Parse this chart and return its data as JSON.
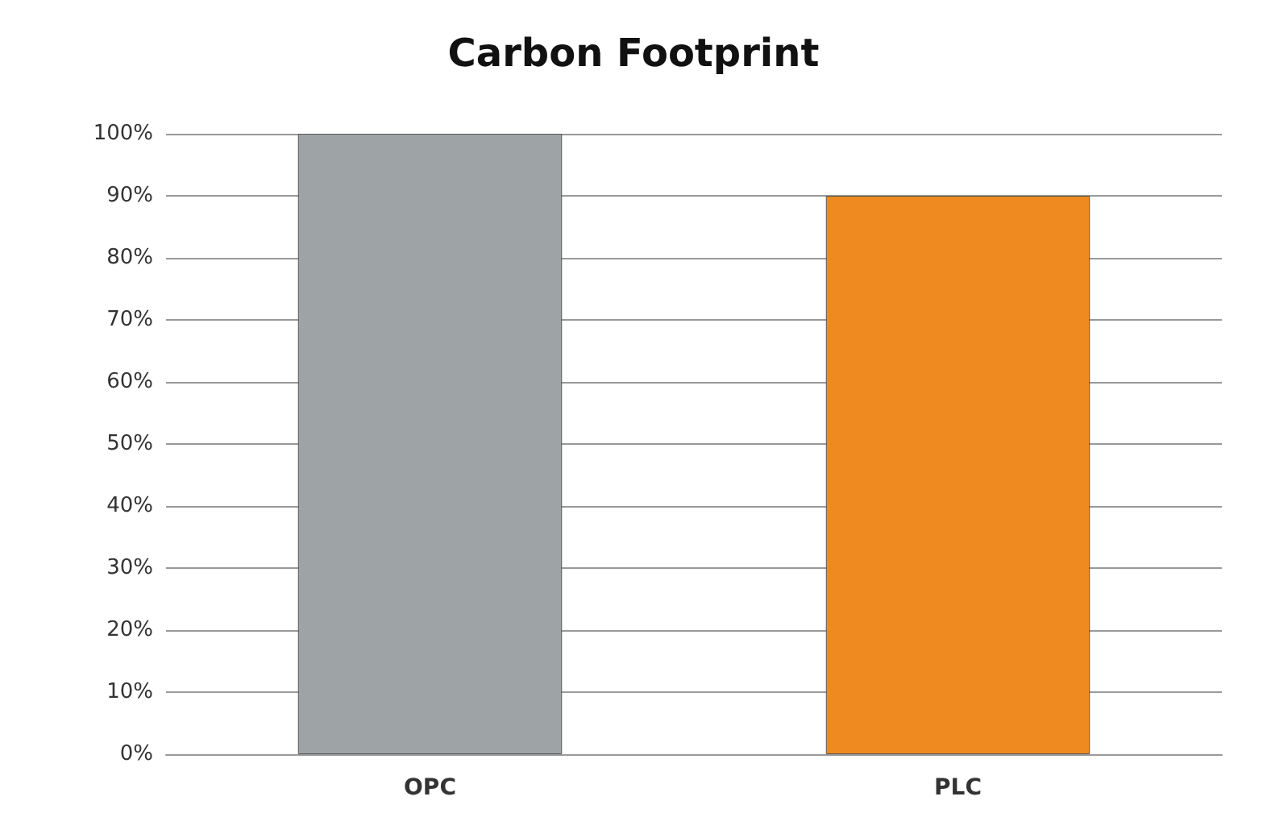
{
  "chart_data": {
    "type": "bar",
    "title": "Carbon Footprint",
    "categories": [
      "OPC",
      "PLC"
    ],
    "values": [
      100,
      90
    ],
    "colors": [
      "#9ea3a6",
      "#ee8a1f"
    ],
    "ylim": [
      0,
      100
    ],
    "yticks": [
      {
        "value": 0,
        "label": "0%"
      },
      {
        "value": 10,
        "label": "10%"
      },
      {
        "value": 20,
        "label": "20%"
      },
      {
        "value": 30,
        "label": "30%"
      },
      {
        "value": 40,
        "label": "40%"
      },
      {
        "value": 50,
        "label": "50%"
      },
      {
        "value": 60,
        "label": "60%"
      },
      {
        "value": 70,
        "label": "70%"
      },
      {
        "value": 80,
        "label": "80%"
      },
      {
        "value": 90,
        "label": "90%"
      },
      {
        "value": 100,
        "label": "100%"
      }
    ],
    "grid": "y"
  }
}
